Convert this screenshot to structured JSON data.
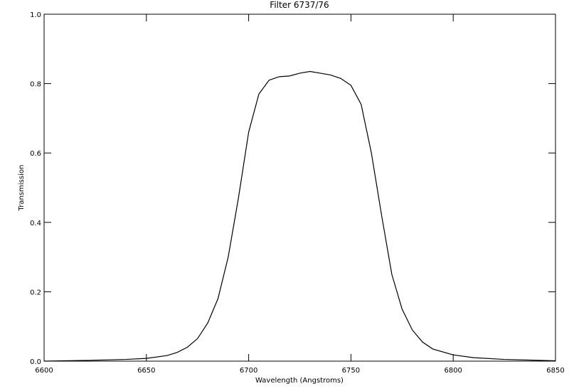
{
  "chart_data": {
    "type": "line",
    "title": "Filter 6737/76",
    "x_label": "Wavelength (Angstroms)",
    "y_label": "Transmission",
    "x": [
      6600,
      6620,
      6640,
      6650,
      6660,
      6665,
      6670,
      6675,
      6680,
      6685,
      6690,
      6695,
      6700,
      6705,
      6710,
      6715,
      6720,
      6725,
      6730,
      6735,
      6740,
      6745,
      6750,
      6755,
      6760,
      6765,
      6770,
      6775,
      6780,
      6785,
      6790,
      6800,
      6810,
      6825,
      6850
    ],
    "series": [
      {
        "name": "Transmission",
        "color": "#000000",
        "values": [
          0.0,
          0.002,
          0.005,
          0.008,
          0.016,
          0.025,
          0.04,
          0.065,
          0.11,
          0.18,
          0.3,
          0.47,
          0.66,
          0.77,
          0.81,
          0.82,
          0.822,
          0.83,
          0.835,
          0.83,
          0.825,
          0.815,
          0.795,
          0.74,
          0.6,
          0.42,
          0.25,
          0.15,
          0.09,
          0.055,
          0.035,
          0.018,
          0.01,
          0.005,
          0.001
        ]
      }
    ],
    "xlim": [
      6600,
      6850
    ],
    "xticks": [
      6600,
      6650,
      6700,
      6750,
      6800,
      6850
    ],
    "ylim": [
      0,
      1
    ],
    "yticks": [
      {
        "value": 0,
        "label": "0.0"
      },
      0.2,
      0.4,
      0.6,
      0.8,
      {
        "value": 1,
        "label": "1.0"
      }
    ],
    "grid": false
  }
}
